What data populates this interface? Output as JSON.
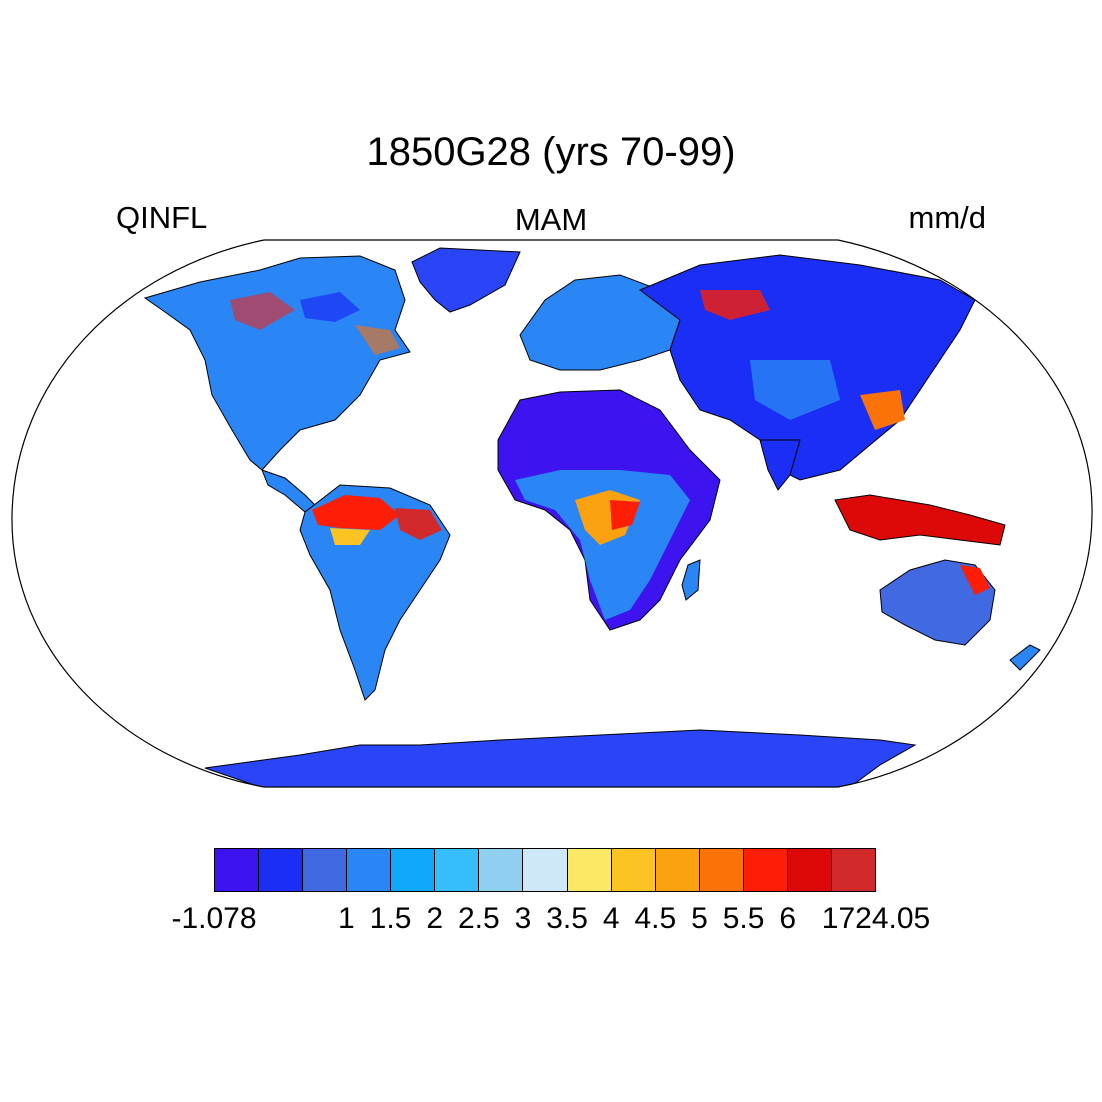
{
  "title": "1850G28 (yrs 70-99)",
  "left_label": "QINFL",
  "center_label": "MAM",
  "right_label": "mm/d",
  "colorbar": {
    "colors": [
      "#3d14f0",
      "#1a2ef5",
      "#4169e1",
      "#2a85f5",
      "#10a8fb",
      "#36befa",
      "#8fcff0",
      "#cfe8f7",
      "#fde865",
      "#fbc423",
      "#fca10f",
      "#fb7209",
      "#fd1e05",
      "#dd0808",
      "#d22a2a"
    ],
    "labels": [
      "-1.078",
      "",
      "",
      "1",
      "1.5",
      "2",
      "2.5",
      "3",
      "3.5",
      "4",
      "4.5",
      "5",
      "5.5",
      "6",
      "1724.05"
    ]
  }
}
